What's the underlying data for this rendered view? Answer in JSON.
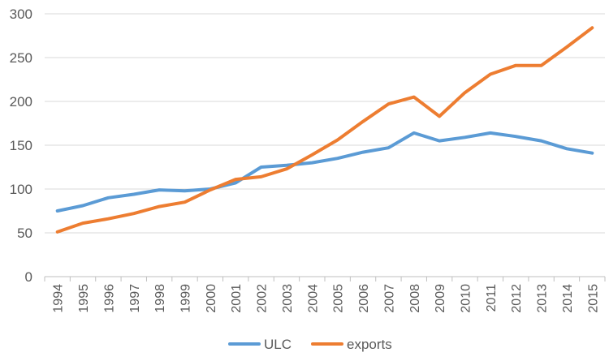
{
  "chart_data": {
    "type": "line",
    "title": "",
    "xlabel": "",
    "ylabel": "",
    "x": [
      "1994",
      "1995",
      "1996",
      "1997",
      "1998",
      "1999",
      "2000",
      "2001",
      "2002",
      "2003",
      "2004",
      "2005",
      "2006",
      "2007",
      "2008",
      "2009",
      "2010",
      "2011",
      "2012",
      "2013",
      "2014",
      "2015"
    ],
    "ylim": [
      0,
      300
    ],
    "yticks": [
      "0",
      "50",
      "100",
      "150",
      "200",
      "250",
      "300"
    ],
    "grid": "horizontal",
    "legend_position": "bottom",
    "series": [
      {
        "name": "ULC",
        "color": "#5B9BD5",
        "values": [
          75,
          81,
          90,
          94,
          99,
          98,
          100,
          107,
          125,
          127,
          130,
          135,
          142,
          147,
          164,
          155,
          159,
          164,
          160,
          155,
          146,
          141
        ]
      },
      {
        "name": "exports",
        "color": "#ED7D31",
        "values": [
          51,
          61,
          66,
          72,
          80,
          85,
          99,
          111,
          114,
          123,
          139,
          156,
          177,
          197,
          205,
          183,
          210,
          231,
          241,
          241,
          262,
          284
        ]
      }
    ]
  }
}
